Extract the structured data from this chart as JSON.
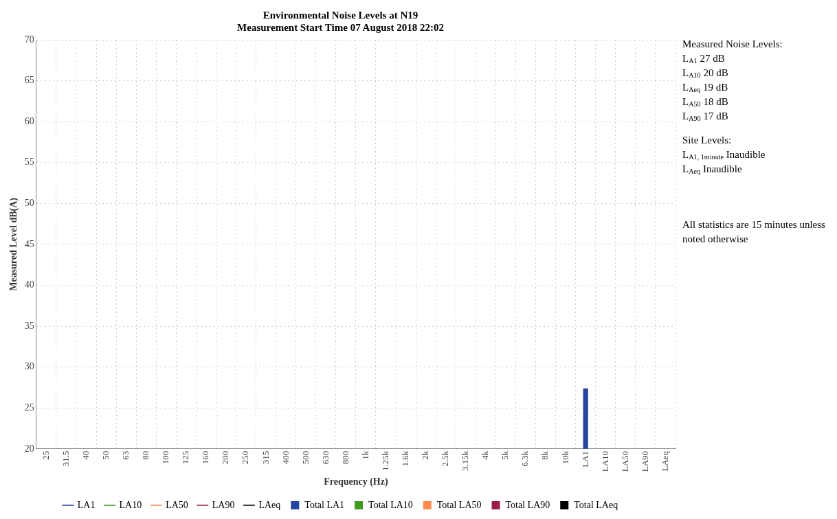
{
  "chart_data": {
    "type": "bar",
    "title": "Environmental Noise Levels at N19",
    "subtitle": "Measurement Start Time 07 August 2018 22:02",
    "xlabel": "Frequency (Hz)",
    "ylabel": "Measured Level dB(A)",
    "categories": [
      "25",
      "31.5",
      "40",
      "50",
      "63",
      "80",
      "100",
      "125",
      "160",
      "200",
      "250",
      "315",
      "400",
      "500",
      "630",
      "800",
      "1k",
      "1.25k",
      "1.6k",
      "2k",
      "2.5k",
      "3.15k",
      "4k",
      "5k",
      "6.3k",
      "8k",
      "10k",
      "LA1",
      "LA10",
      "LA50",
      "LA90",
      "LAeq"
    ],
    "series": [
      {
        "name": "LA1",
        "type": "line",
        "color": "#1f3f99",
        "values": [
          null,
          null,
          null,
          null,
          null,
          null,
          null,
          null,
          null,
          null,
          null,
          null,
          null,
          null,
          null,
          null,
          null,
          null,
          null,
          null,
          null,
          null,
          null,
          null,
          null,
          null,
          null,
          null,
          null,
          null,
          null,
          null
        ]
      },
      {
        "name": "LA10",
        "type": "line",
        "color": "#3a9a20",
        "values": [
          null,
          null,
          null,
          null,
          null,
          null,
          null,
          null,
          null,
          null,
          null,
          null,
          null,
          null,
          null,
          null,
          null,
          null,
          null,
          null,
          null,
          null,
          null,
          null,
          null,
          null,
          null,
          null,
          null,
          null,
          null,
          null
        ]
      },
      {
        "name": "LA50",
        "type": "line",
        "color": "#ff8a50",
        "values": [
          null,
          null,
          null,
          null,
          null,
          null,
          null,
          null,
          null,
          null,
          null,
          null,
          null,
          null,
          null,
          null,
          null,
          null,
          null,
          null,
          null,
          null,
          null,
          null,
          null,
          null,
          null,
          null,
          null,
          null,
          null,
          null
        ]
      },
      {
        "name": "LA90",
        "type": "line",
        "color": "#9a1f45",
        "values": [
          null,
          null,
          null,
          null,
          null,
          null,
          null,
          null,
          null,
          null,
          null,
          null,
          null,
          null,
          null,
          null,
          null,
          null,
          null,
          null,
          null,
          null,
          null,
          null,
          null,
          null,
          null,
          null,
          null,
          null,
          null,
          null
        ]
      },
      {
        "name": "LAeq",
        "type": "line",
        "color": "#000000",
        "values": [
          null,
          null,
          null,
          null,
          null,
          null,
          null,
          null,
          null,
          null,
          null,
          null,
          null,
          null,
          null,
          null,
          null,
          null,
          null,
          null,
          null,
          null,
          null,
          null,
          null,
          null,
          null,
          null,
          null,
          null,
          null,
          null
        ]
      },
      {
        "name": "Total LA1",
        "color": "#2444a0",
        "values": [
          null,
          null,
          null,
          null,
          null,
          null,
          null,
          null,
          null,
          null,
          null,
          null,
          null,
          null,
          null,
          null,
          null,
          null,
          null,
          null,
          null,
          null,
          null,
          null,
          null,
          null,
          null,
          27.4,
          null,
          null,
          null,
          null
        ]
      },
      {
        "name": "Total LA10",
        "color": "#3f9a22",
        "values": [
          null,
          null,
          null,
          null,
          null,
          null,
          null,
          null,
          null,
          null,
          null,
          null,
          null,
          null,
          null,
          null,
          null,
          null,
          null,
          null,
          null,
          null,
          null,
          null,
          null,
          null,
          null,
          null,
          null,
          null,
          null,
          null
        ]
      },
      {
        "name": "Total LA50",
        "color": "#ff8c4c",
        "values": [
          null,
          null,
          null,
          null,
          null,
          null,
          null,
          null,
          null,
          null,
          null,
          null,
          null,
          null,
          null,
          null,
          null,
          null,
          null,
          null,
          null,
          null,
          null,
          null,
          null,
          null,
          null,
          null,
          null,
          null,
          null,
          null
        ]
      },
      {
        "name": "Total LA90",
        "color": "#9b1d43",
        "values": [
          null,
          null,
          null,
          null,
          null,
          null,
          null,
          null,
          null,
          null,
          null,
          null,
          null,
          null,
          null,
          null,
          null,
          null,
          null,
          null,
          null,
          null,
          null,
          null,
          null,
          null,
          null,
          null,
          null,
          null,
          null,
          null
        ]
      },
      {
        "name": "Total LAeq",
        "color": "#000000",
        "values": [
          null,
          null,
          null,
          null,
          null,
          null,
          null,
          null,
          null,
          null,
          null,
          null,
          null,
          null,
          null,
          null,
          null,
          null,
          null,
          null,
          null,
          null,
          null,
          null,
          null,
          null,
          null,
          null,
          null,
          null,
          null,
          null
        ]
      }
    ],
    "ylim": [
      20,
      70
    ],
    "yticks": [
      20,
      25,
      30,
      35,
      40,
      45,
      50,
      55,
      60,
      65,
      70
    ],
    "grid": true,
    "legend": "bottom",
    "marker": "none",
    "annotations": [
      "Measured Noise Levels:",
      "L$_{A1}$ 27 dB",
      "L$_{A10}$ 20 dB",
      "L$_{Aeq}$ 19 dB",
      "L$_{A50}$ 18 dB",
      "L$_{A90}$ 17 dB",
      "Site Levels:",
      "L$_{A1, 1minute}$ Inaudible",
      "L$_{Aeq}$ Inaudible",
      "All statistics are 15 minutes unless noted otherwise"
    ]
  }
}
